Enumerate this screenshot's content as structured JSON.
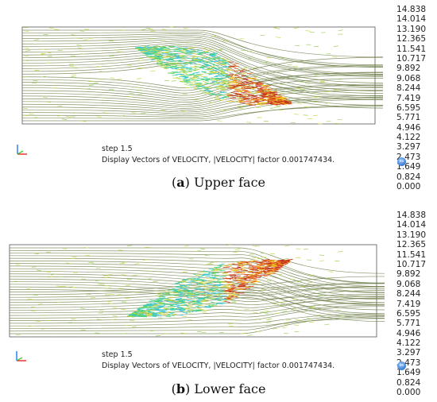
{
  "panels": [
    {
      "id": "a",
      "letter": "a",
      "caption_text": "Upper face",
      "step": "step 1.5",
      "display": "Display Vectors of VELOCITY, |VELOCITY| factor 0.001747434.",
      "legend": [
        "14.838",
        "14.014",
        "13.190",
        "12.365",
        "11.541",
        "10.717",
        "9.892",
        "9.068",
        "8.244",
        "7.419",
        "6.595",
        "5.771",
        "4.946",
        "4.122",
        "3.297",
        "2.473",
        "1.649",
        "0.824",
        "0.000"
      ]
    },
    {
      "id": "b",
      "letter": "b",
      "caption_text": "Lower face",
      "step": "step 1.5",
      "display": "Display Vectors of VELOCITY, |VELOCITY| factor 0.001747434.",
      "legend": [
        "14.838",
        "14.014",
        "13.190",
        "12.365",
        "11.541",
        "10.717",
        "9.892",
        "9.068",
        "8.244",
        "7.419",
        "6.595",
        "5.771",
        "4.946",
        "4.122",
        "3.297",
        "2.473",
        "1.649",
        "0.824",
        "0.000"
      ]
    }
  ],
  "colors": {
    "streamline": "#6f7f4a",
    "low": "#c8d84a",
    "mid": "#3fd07a",
    "cyan": "#37c8d8",
    "high": "#e8601c",
    "hot": "#c0281c"
  },
  "icons": [
    "axes-icon",
    "scale-badge-icon"
  ]
}
